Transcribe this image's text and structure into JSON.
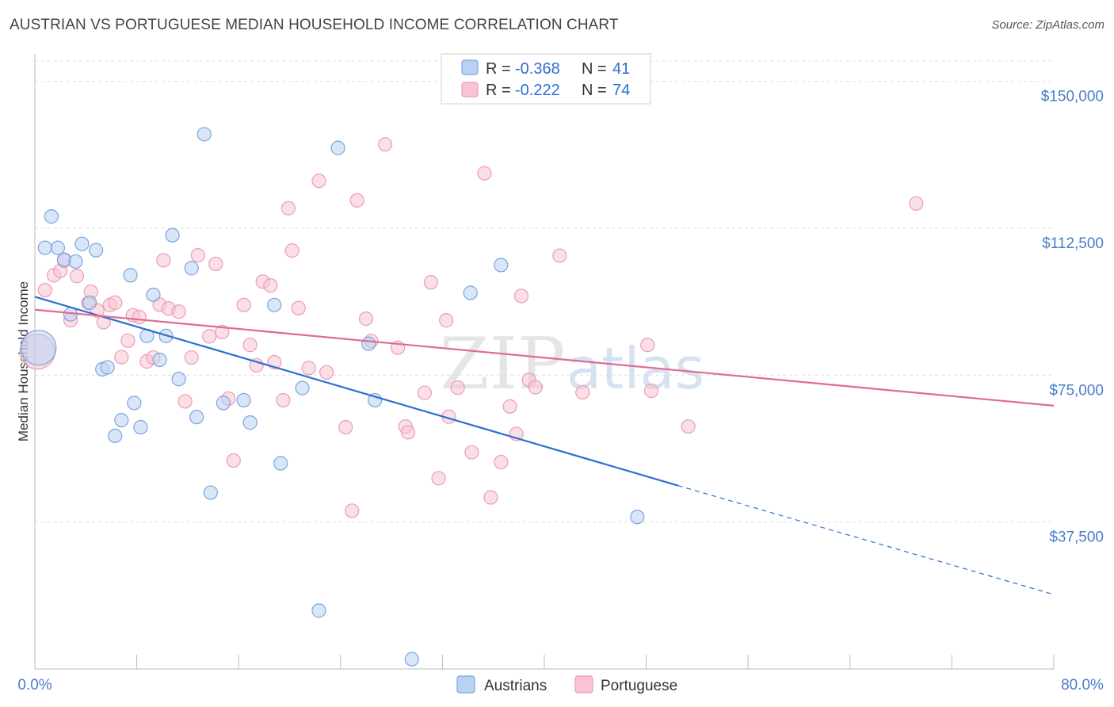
{
  "title": "AUSTRIAN VS PORTUGUESE MEDIAN HOUSEHOLD INCOME CORRELATION CHART",
  "source": "Source: ZipAtlas.com",
  "colors": {
    "austrians_fill": "#b9d1f3",
    "austrians_stroke": "#7aa5e0",
    "austrians_line": "#2d6fd0",
    "portuguese_fill": "#f8c4d4",
    "portuguese_stroke": "#ec9bb5",
    "portuguese_line": "#e06a93",
    "tick_text": "#4a7cc9",
    "grid": "#dddddd"
  },
  "legend": {
    "r_label": "R =",
    "n_label": "N =",
    "rows": [
      {
        "r": "-0.368",
        "n": "41"
      },
      {
        "r": "-0.222",
        "n": "74"
      }
    ]
  },
  "watermark": {
    "zip": "ZIP",
    "atlas": "atlas"
  },
  "chart_data": {
    "type": "scatter",
    "title": "AUSTRIAN VS PORTUGUESE MEDIAN HOUSEHOLD INCOME CORRELATION CHART",
    "xlabel": "",
    "ylabel": "Median Household Income",
    "xlim": [
      0,
      80
    ],
    "ylim": [
      0,
      157000
    ],
    "x_tick_labels": [
      "0.0%",
      "80.0%"
    ],
    "y_ticks": [
      {
        "value": 37500,
        "label": "$37,500"
      },
      {
        "value": 75000,
        "label": "$75,000"
      },
      {
        "value": 112500,
        "label": "$112,500"
      },
      {
        "value": 150000,
        "label": "$150,000"
      }
    ],
    "grid": true,
    "legend_position": "top-center",
    "series": [
      {
        "name": "Austrians",
        "r": -0.368,
        "n": 41,
        "trend": {
          "x0": 0,
          "y0": 95000,
          "x1": 50.5,
          "y1": 46800,
          "dash_to_x": 80,
          "dash_to_y": 19000
        },
        "points": [
          [
            0.3,
            82000,
            "large"
          ],
          [
            0.8,
            107500
          ],
          [
            1.3,
            115500
          ],
          [
            1.8,
            107500
          ],
          [
            2.3,
            104500
          ],
          [
            3.2,
            104000
          ],
          [
            3.7,
            108500
          ],
          [
            4.8,
            106900
          ],
          [
            2.8,
            90500
          ],
          [
            4.3,
            93500
          ],
          [
            5.3,
            76500
          ],
          [
            5.7,
            77000
          ],
          [
            6.3,
            59500
          ],
          [
            6.8,
            63500
          ],
          [
            7.5,
            100500
          ],
          [
            7.8,
            67900
          ],
          [
            8.3,
            61700
          ],
          [
            8.8,
            85000
          ],
          [
            9.3,
            95500
          ],
          [
            9.8,
            78900
          ],
          [
            10.3,
            85000
          ],
          [
            10.8,
            110700
          ],
          [
            11.3,
            74000
          ],
          [
            12.3,
            102300
          ],
          [
            12.7,
            64300
          ],
          [
            13.3,
            136500
          ],
          [
            13.8,
            45000
          ],
          [
            14.8,
            67900
          ],
          [
            16.4,
            68600
          ],
          [
            16.9,
            62900
          ],
          [
            18.8,
            92900
          ],
          [
            19.3,
            52500
          ],
          [
            21.0,
            71700
          ],
          [
            22.3,
            14900
          ],
          [
            23.8,
            133000
          ],
          [
            26.2,
            83000
          ],
          [
            26.7,
            68600
          ],
          [
            29.6,
            2500
          ],
          [
            34.2,
            96000
          ],
          [
            36.6,
            103100
          ],
          [
            47.3,
            38800
          ]
        ]
      },
      {
        "name": "Portuguese",
        "r": -0.222,
        "n": 74,
        "trend": {
          "x0": 0,
          "y0": 91700,
          "x1": 80,
          "y1": 67200
        },
        "points": [
          [
            0.2,
            81000,
            "large"
          ],
          [
            0.8,
            96700
          ],
          [
            1.5,
            100500
          ],
          [
            2.0,
            101600
          ],
          [
            2.3,
            104200
          ],
          [
            2.8,
            89000
          ],
          [
            3.3,
            100300
          ],
          [
            4.2,
            93400
          ],
          [
            4.4,
            96300
          ],
          [
            4.9,
            91500
          ],
          [
            5.4,
            88500
          ],
          [
            5.9,
            92900
          ],
          [
            6.3,
            93500
          ],
          [
            6.8,
            79600
          ],
          [
            7.3,
            83800
          ],
          [
            7.7,
            90300
          ],
          [
            8.2,
            89800
          ],
          [
            8.8,
            78500
          ],
          [
            9.3,
            79500
          ],
          [
            9.8,
            93000
          ],
          [
            10.1,
            104300
          ],
          [
            10.5,
            92000
          ],
          [
            11.3,
            91200
          ],
          [
            11.8,
            68300
          ],
          [
            12.3,
            79500
          ],
          [
            12.8,
            105600
          ],
          [
            13.7,
            84900
          ],
          [
            14.2,
            103400
          ],
          [
            14.7,
            86000
          ],
          [
            15.2,
            69000
          ],
          [
            15.6,
            53200
          ],
          [
            16.4,
            92900
          ],
          [
            16.9,
            82700
          ],
          [
            17.4,
            77500
          ],
          [
            17.9,
            98900
          ],
          [
            18.5,
            97900
          ],
          [
            18.8,
            78300
          ],
          [
            19.5,
            68600
          ],
          [
            19.9,
            117600
          ],
          [
            20.2,
            106800
          ],
          [
            20.7,
            92100
          ],
          [
            21.5,
            76800
          ],
          [
            22.3,
            124600
          ],
          [
            22.9,
            75700
          ],
          [
            24.4,
            61700
          ],
          [
            24.9,
            40400
          ],
          [
            25.3,
            119600
          ],
          [
            26.0,
            89400
          ],
          [
            26.4,
            83700
          ],
          [
            27.5,
            133900
          ],
          [
            28.5,
            82000
          ],
          [
            29.1,
            61900
          ],
          [
            29.3,
            60400
          ],
          [
            30.6,
            70500
          ],
          [
            31.1,
            98700
          ],
          [
            31.7,
            48700
          ],
          [
            32.3,
            89000
          ],
          [
            32.5,
            64400
          ],
          [
            33.2,
            71800
          ],
          [
            34.3,
            55300
          ],
          [
            35.3,
            126500
          ],
          [
            35.8,
            43800
          ],
          [
            36.6,
            52800
          ],
          [
            37.3,
            67000
          ],
          [
            37.8,
            60000
          ],
          [
            38.2,
            95200
          ],
          [
            38.8,
            73800
          ],
          [
            39.3,
            71900
          ],
          [
            41.2,
            105500
          ],
          [
            43.0,
            70600
          ],
          [
            48.1,
            82700
          ],
          [
            48.4,
            71000
          ],
          [
            51.3,
            61900
          ],
          [
            69.2,
            118800
          ]
        ]
      }
    ]
  }
}
